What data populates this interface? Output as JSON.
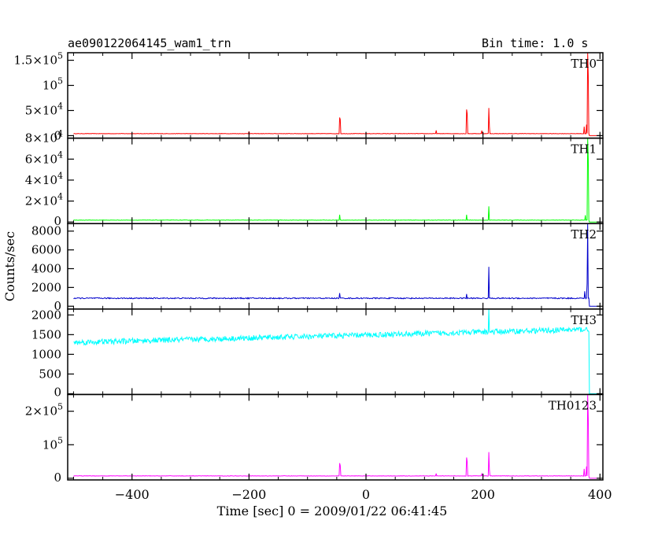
{
  "header": {
    "title": "ae090122064145_wam1_trn",
    "bin_time": "Bin time: 1.0 s"
  },
  "chart_data": {
    "type": "line",
    "xlabel": "Time [sec] 0 = 2009/01/22 06:41:45",
    "ylabel": "Counts/sec",
    "xlim": [
      -510,
      405
    ],
    "x_ticks": [
      -400,
      -200,
      0,
      200,
      400
    ],
    "x_tick_labels": [
      "−400",
      "−200",
      "0",
      "200",
      "400"
    ],
    "panels": [
      {
        "name": "TH0",
        "color": "#ff0000",
        "ylim": [
          -5000,
          165000
        ],
        "y_ticks": [
          {
            "value": 0,
            "label": "0",
            "exp": ""
          },
          {
            "value": 50000,
            "label": "5×10",
            "exp": "4"
          },
          {
            "value": 100000,
            "label": "10",
            "exp": "5"
          },
          {
            "value": 150000,
            "label": "1.5×10",
            "exp": "5"
          }
        ],
        "baseline": 4000,
        "trend": 0,
        "noise": 400,
        "peaks": [
          {
            "x": -200,
            "y": 8500
          },
          {
            "x": -45,
            "y": 36000
          },
          {
            "x": -44,
            "y": 32000
          },
          {
            "x": 120,
            "y": 10500
          },
          {
            "x": 172,
            "y": 52000
          },
          {
            "x": 173,
            "y": 44000
          },
          {
            "x": 198,
            "y": 10000
          },
          {
            "x": 210,
            "y": 55000
          },
          {
            "x": 211,
            "y": 18000
          },
          {
            "x": 373,
            "y": 18000
          },
          {
            "x": 377,
            "y": 22000
          },
          {
            "x": 379,
            "y": 165000
          },
          {
            "x": 380,
            "y": 120000
          }
        ]
      },
      {
        "name": "TH1",
        "color": "#00ff00",
        "ylim": [
          -1500,
          80000
        ],
        "y_ticks": [
          {
            "value": 0,
            "label": "0",
            "exp": ""
          },
          {
            "value": 20000,
            "label": "2×10",
            "exp": "4"
          },
          {
            "value": 40000,
            "label": "4×10",
            "exp": "4"
          },
          {
            "value": 60000,
            "label": "6×10",
            "exp": "4"
          },
          {
            "value": 80000,
            "label": "8×10",
            "exp": "4"
          }
        ],
        "baseline": 1800,
        "trend": 0,
        "noise": 200,
        "peaks": [
          {
            "x": -45,
            "y": 7000
          },
          {
            "x": 172,
            "y": 7000
          },
          {
            "x": 210,
            "y": 15000
          },
          {
            "x": 375,
            "y": 6500
          },
          {
            "x": 379,
            "y": 80000
          },
          {
            "x": 380,
            "y": 60000
          }
        ]
      },
      {
        "name": "TH2",
        "color": "#0000cc",
        "ylim": [
          -300,
          8800
        ],
        "y_ticks": [
          {
            "value": 0,
            "label": "0",
            "exp": ""
          },
          {
            "value": 2000,
            "label": "2000",
            "exp": ""
          },
          {
            "value": 4000,
            "label": "4000",
            "exp": ""
          },
          {
            "value": 6000,
            "label": "6000",
            "exp": ""
          },
          {
            "value": 8000,
            "label": "8000",
            "exp": ""
          }
        ],
        "baseline": 850,
        "trend": 0,
        "noise": 60,
        "peaks": [
          {
            "x": -45,
            "y": 1400
          },
          {
            "x": 172,
            "y": 1300
          },
          {
            "x": 210,
            "y": 4200
          },
          {
            "x": 374,
            "y": 1600
          },
          {
            "x": 378,
            "y": 2400
          },
          {
            "x": 379,
            "y": 8800
          }
        ]
      },
      {
        "name": "TH3",
        "color": "#00ffff",
        "ylim": [
          -20,
          2150
        ],
        "y_ticks": [
          {
            "value": 0,
            "label": "0",
            "exp": ""
          },
          {
            "value": 500,
            "label": "500",
            "exp": ""
          },
          {
            "value": 1000,
            "label": "1000",
            "exp": ""
          },
          {
            "value": 1500,
            "label": "1500",
            "exp": ""
          },
          {
            "value": 2000,
            "label": "2000",
            "exp": ""
          }
        ],
        "baseline": 1300,
        "trend": 0.38,
        "noise": 70,
        "peaks": [
          {
            "x": 210,
            "y": 2150
          }
        ]
      },
      {
        "name": "TH0123",
        "color": "#ff00ff",
        "ylim": [
          -5000,
          250000
        ],
        "y_ticks": [
          {
            "value": 0,
            "label": "0",
            "exp": ""
          },
          {
            "value": 100000,
            "label": "10",
            "exp": "5"
          },
          {
            "value": 200000,
            "label": "2×10",
            "exp": "5"
          }
        ],
        "baseline": 7000,
        "trend": 0,
        "noise": 600,
        "peaks": [
          {
            "x": -200,
            "y": 9000
          },
          {
            "x": -45,
            "y": 45000
          },
          {
            "x": -44,
            "y": 38000
          },
          {
            "x": 120,
            "y": 14000
          },
          {
            "x": 172,
            "y": 62000
          },
          {
            "x": 173,
            "y": 50000
          },
          {
            "x": 198,
            "y": 13000
          },
          {
            "x": 210,
            "y": 78000
          },
          {
            "x": 211,
            "y": 25000
          },
          {
            "x": 373,
            "y": 28000
          },
          {
            "x": 377,
            "y": 35000
          },
          {
            "x": 379,
            "y": 250000
          },
          {
            "x": 380,
            "y": 180000
          }
        ]
      }
    ],
    "data_range": [
      -500,
      381
    ]
  }
}
